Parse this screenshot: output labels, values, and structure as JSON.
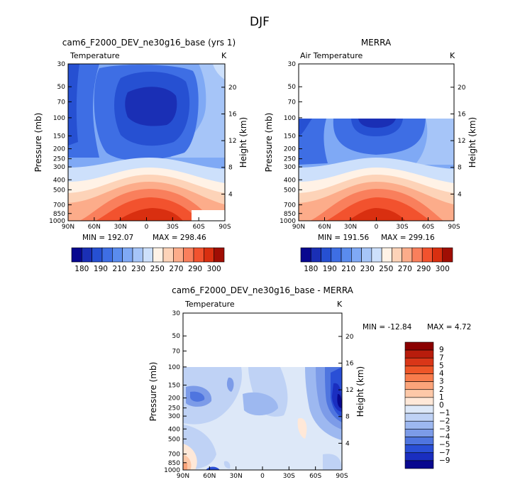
{
  "figure": {
    "season": "DJF",
    "unit": "K",
    "pressure_ticks": [
      "30",
      "50",
      "70",
      "100",
      "150",
      "200",
      "250",
      "300",
      "400",
      "500",
      "700",
      "850",
      "1000"
    ],
    "height_ticks": [
      "20",
      "16",
      "12",
      "8",
      "4"
    ],
    "lat_ticks": [
      "90N",
      "60N",
      "30N",
      "0",
      "30S",
      "60S",
      "90S"
    ],
    "ylabel_left": "Pressure (mb)",
    "ylabel_right": "Height (km)"
  },
  "chart_data": [
    {
      "type": "heatmap",
      "title": "cam6_F2000_DEV_ne30g16_base (yrs 1)",
      "variable": "Temperature",
      "units": "K",
      "min_label": "MIN = 192.07",
      "max_label": "MAX = 298.46",
      "min": 192.07,
      "max": 298.46,
      "xlim": [
        -90,
        90
      ],
      "ylim_mb": [
        1000,
        30
      ],
      "colorbar_levels": [
        180,
        190,
        200,
        210,
        220,
        230,
        240,
        250,
        260,
        270,
        280,
        290,
        300
      ],
      "colorbar_labels": [
        "180",
        "190",
        "210",
        "230",
        "250",
        "270",
        "290",
        "300"
      ],
      "colors": [
        "#08088f",
        "#1a2fb5",
        "#2650d2",
        "#3e6ee4",
        "#5a8cee",
        "#7fa9f5",
        "#a6c5f8",
        "#cde0fb",
        "#fff2e6",
        "#fdd3b8",
        "#fcac8a",
        "#f97f5c",
        "#f2522e",
        "#d92f10",
        "#a00e04"
      ]
    },
    {
      "type": "heatmap",
      "title": "MERRA",
      "variable": "Air Temperature",
      "units": "K",
      "min_label": "MIN = 191.56",
      "max_label": "MAX = 299.16",
      "min": 191.56,
      "max": 299.16,
      "xlim": [
        -90,
        90
      ],
      "ylim_mb": [
        1000,
        30
      ],
      "data_top_mb": 100,
      "colorbar_levels": [
        180,
        190,
        200,
        210,
        220,
        230,
        240,
        250,
        260,
        270,
        280,
        290,
        300
      ],
      "colorbar_labels": [
        "180",
        "190",
        "210",
        "230",
        "250",
        "270",
        "290",
        "300"
      ]
    },
    {
      "type": "heatmap",
      "title": "cam6_F2000_DEV_ne30g16_base - MERRA",
      "variable": "Temperature",
      "units": "K",
      "min_label": "MIN = -12.84",
      "max_label": "MAX =   4.72",
      "min": -12.84,
      "max": 4.72,
      "xlim": [
        -90,
        90
      ],
      "ylim_mb": [
        1000,
        30
      ],
      "data_top_mb": 100,
      "colorbar_levels": [
        9,
        7,
        5,
        4,
        3,
        2,
        1,
        0,
        -1,
        -2,
        -3,
        -4,
        -5,
        -7,
        -9
      ],
      "colorbar_labels": [
        "9",
        "7",
        "5",
        "4",
        "3",
        "2",
        "1",
        "0",
        "-1",
        "-2",
        "-3",
        "-4",
        "-5",
        "-7",
        "-9"
      ],
      "colors": [
        "#8b0000",
        "#b81c0c",
        "#d93618",
        "#ee5628",
        "#f87c4c",
        "#fba47a",
        "#fdc8a8",
        "#ffe8d8",
        "#dde8f8",
        "#bfd2f5",
        "#9db8f0",
        "#7c9be8",
        "#4f75df",
        "#2a4fd6",
        "#1a2ec0",
        "#08088f"
      ]
    }
  ]
}
